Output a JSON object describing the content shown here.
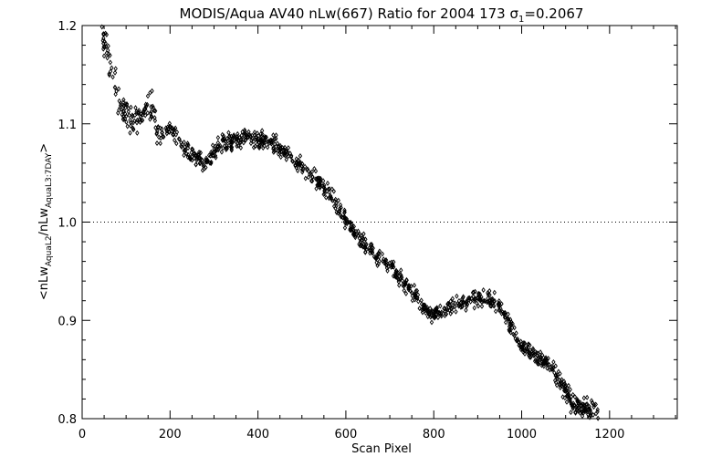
{
  "chart_data": {
    "type": "scatter",
    "title_parts": {
      "main": "MODIS/Aqua AV40 nLw(667) Ratio for 2004 173 ",
      "sigma": "σ",
      "sigma_sub": "1",
      "value": "=0.2067"
    },
    "xlabel": "Scan Pixel",
    "ylabel_parts": {
      "pre": "<nLw",
      "sub1": "AquaL2",
      "mid": "/nLw",
      "sub2": "AquaL3:7DAY",
      "post": ">"
    },
    "xlim": [
      0,
      1354
    ],
    "ylim": [
      0.8,
      1.2
    ],
    "x_ticks": [
      0,
      200,
      400,
      600,
      800,
      1000,
      1200
    ],
    "x_tick_labels": [
      "0",
      "200",
      "400",
      "600",
      "800",
      "1000",
      "1200"
    ],
    "y_ticks": [
      0.8,
      0.9,
      1.0,
      1.1,
      1.2
    ],
    "y_tick_labels": [
      "0.8",
      "0.9",
      "1.0",
      "1.1",
      "1.2"
    ],
    "reference_line": 1.0,
    "grid": false,
    "marker": "diamond",
    "trend": {
      "x": [
        45,
        55,
        65,
        75,
        85,
        100,
        120,
        140,
        160,
        170,
        180,
        200,
        230,
        260,
        280,
        300,
        320,
        350,
        380,
        420,
        450,
        480,
        510,
        540,
        560,
        590,
        610,
        640,
        670,
        700,
        730,
        760,
        780,
        800,
        830,
        860,
        890,
        920,
        950,
        980,
        1000,
        1020,
        1040,
        1060,
        1080,
        1100,
        1120,
        1140,
        1160,
        1170
      ],
      "y": [
        1.195,
        1.175,
        1.155,
        1.14,
        1.12,
        1.11,
        1.105,
        1.11,
        1.118,
        1.095,
        1.09,
        1.095,
        1.075,
        1.065,
        1.058,
        1.072,
        1.08,
        1.084,
        1.085,
        1.083,
        1.075,
        1.065,
        1.05,
        1.04,
        1.03,
        1.01,
        0.995,
        0.978,
        0.965,
        0.955,
        0.94,
        0.925,
        0.91,
        0.905,
        0.912,
        0.918,
        0.923,
        0.924,
        0.915,
        0.89,
        0.875,
        0.868,
        0.862,
        0.857,
        0.845,
        0.828,
        0.815,
        0.81,
        0.808,
        0.805
      ]
    },
    "x_range": [
      45,
      1175
    ],
    "n_points": 1150,
    "noise": 0.008
  }
}
